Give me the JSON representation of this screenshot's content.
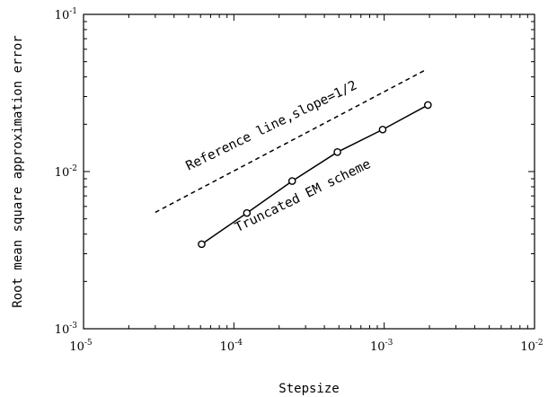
{
  "chart_data": {
    "type": "line",
    "xscale": "log",
    "yscale": "log",
    "xlim": [
      1e-05,
      0.01
    ],
    "ylim": [
      0.001,
      0.1
    ],
    "xlabel": "Stepsize",
    "ylabel": "Root mean square approximation error",
    "grid": false,
    "x_ticks": [
      {
        "base": "10",
        "exp": "-5"
      },
      {
        "base": "10",
        "exp": "-4"
      },
      {
        "base": "10",
        "exp": "-3"
      },
      {
        "base": "10",
        "exp": "-2"
      }
    ],
    "y_ticks": [
      {
        "base": "10",
        "exp": "-3"
      },
      {
        "base": "10",
        "exp": "-2"
      },
      {
        "base": "10",
        "exp": "-1"
      }
    ],
    "series": [
      {
        "name": "Truncated EM scheme",
        "style": "solid",
        "marker": "circle",
        "color": "#000000",
        "x": [
          6.103515625e-05,
          0.0001220703125,
          0.000244140625,
          0.00048828125,
          0.0009765625,
          0.001953125
        ],
        "y": [
          0.00345,
          0.00545,
          0.0087,
          0.0133,
          0.0185,
          0.0265
        ]
      },
      {
        "name": "Reference line,slope=1/2",
        "style": "dashed",
        "marker": "none",
        "color": "#000000",
        "x": [
          3e-05,
          0.0019
        ],
        "y": [
          0.0055,
          0.0445
        ]
      }
    ],
    "annotations": [
      {
        "text": "Reference line,slope=1/2",
        "series": "Reference line,slope=1/2"
      },
      {
        "text": "Truncated EM scheme",
        "series": "Truncated EM scheme"
      }
    ]
  }
}
